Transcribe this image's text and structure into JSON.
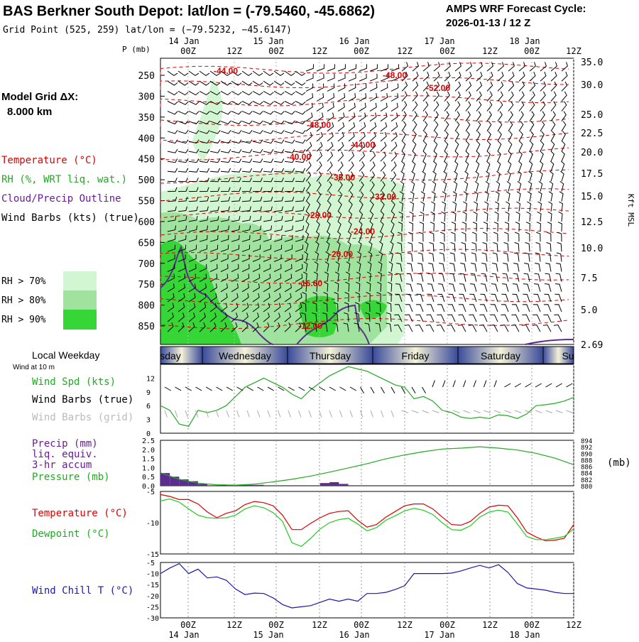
{
  "header": {
    "title": "BAS Berkner South Depot:  lat/lon = (-79.5460, -45.6862)",
    "grid_point": "Grid Point (525, 259) lat/lon = (−79.5232, −45.6147)",
    "forecast_cycle_label": "AMPS WRF Forecast Cycle:",
    "forecast_cycle_value": "2026-01-13 / 12  Z",
    "model_grid_label": "Model Grid ΔX:",
    "model_grid_value": "8.000 km"
  },
  "time_axis": {
    "dates": [
      "14 Jan",
      "15 Jan",
      "16 Jan",
      "17 Jan",
      "18 Jan"
    ],
    "hours": [
      "00Z",
      "12Z",
      "00Z",
      "12Z",
      "00Z",
      "12Z",
      "00Z",
      "12Z",
      "00Z",
      "12Z"
    ],
    "p_label": "P (mb)"
  },
  "legend": {
    "temperature": "Temperature (°C)",
    "rh": "RH (%, WRT liq. wat.)",
    "cloud": "Cloud/Precip Outline",
    "wind": "Wind Barbs (kts) (true)",
    "rh70": "RH > 70%",
    "rh80": "RH > 80%",
    "rh90": "RH > 90%",
    "colors": {
      "temperature": "#e00000",
      "rh": "#22aa22",
      "cloud": "#6a1b9a",
      "wind": "#000000",
      "rh70": "#d2f6d2",
      "rh80": "#9fe39f",
      "rh90": "#37d637"
    }
  },
  "weekday_strip": {
    "label": "Local Weekday",
    "sub": "Wind at 10 m",
    "days": [
      "sday",
      "Wednesday",
      "Thursday",
      "Friday",
      "Saturday",
      "Su"
    ]
  },
  "panel_labels": {
    "wind_spd": "Wind Spd (kts)",
    "wind_barbs_true": "Wind Barbs (true)",
    "wind_barbs_grid": "Wind Barbs (grid)",
    "precip1": "Precip (mm)",
    "precip2": "liq. equiv.",
    "precip3": "3-hr accum",
    "pressure": "Pressure (mb)",
    "pressure_unit": "(mb)",
    "temperature": "Temperature (°C)",
    "dewpoint": "Dewpoint (°C)",
    "windchill": "Wind Chill T (°C)",
    "kft": "Kft MSL"
  },
  "chart_data": [
    {
      "type": "heatmap",
      "name": "cross-section",
      "x_hours": [
        0,
        132
      ],
      "pressure_ticks": [
        250,
        300,
        350,
        400,
        450,
        500,
        550,
        600,
        650,
        700,
        750,
        800,
        850
      ],
      "height_ticks": [
        "35.0",
        "30.0",
        "25.0",
        "22.5",
        "20.0",
        "17.5",
        "15.0",
        "12.5",
        "10.0",
        "7.5",
        "5.0",
        "2.69"
      ],
      "temperature_labels": [
        "-44.00",
        "-48.00",
        "-52.00",
        "-48.00",
        "-44.00",
        "-40.00",
        "-36.00",
        "-32.00",
        "-28.00",
        "-24.00",
        "-20.00",
        "-16.00",
        "-12.00"
      ]
    },
    {
      "type": "line",
      "name": "wind-speed",
      "ylabel": "Wind Spd (kts)",
      "ylim": [
        0,
        15
      ],
      "yticks": [
        0,
        3,
        6,
        9,
        12
      ],
      "x": [
        0,
        3,
        6,
        9,
        12,
        15,
        18,
        21,
        24,
        27,
        30,
        33,
        36,
        39,
        42,
        45,
        48,
        51,
        54,
        57,
        60,
        63,
        66,
        69,
        72,
        75,
        78,
        81,
        84,
        87,
        90,
        93,
        96,
        99,
        102,
        105,
        108,
        111,
        114,
        117,
        120,
        123,
        126,
        129,
        132
      ],
      "values": [
        6,
        5,
        2,
        1.5,
        5,
        4.5,
        5,
        6,
        8,
        10,
        11,
        12,
        11,
        10,
        8.5,
        7.5,
        9.5,
        11,
        12.5,
        13.5,
        14.5,
        14,
        13.5,
        12.5,
        11.5,
        10.5,
        10,
        7.5,
        8,
        7,
        5,
        4.5,
        3.5,
        3.2,
        3.5,
        3.2,
        4,
        3.8,
        3.2,
        4.2,
        6,
        6.2,
        6.5,
        7,
        7.8
      ]
    },
    {
      "type": "bar",
      "name": "precip",
      "ylabel": "Precip (mm)",
      "ylim": [
        0,
        2.5
      ],
      "yticks": [
        "0.0",
        "0.5",
        "1.0",
        "1.5",
        "2.0",
        "2.5"
      ],
      "x": [
        1.5,
        4.5,
        7.5,
        10.5,
        13.5,
        22.5,
        25.5,
        28.5,
        31.5,
        52.5,
        55.5,
        58.5
      ],
      "values": [
        0.7,
        0.5,
        0.35,
        0.25,
        0.1,
        0.05,
        0.05,
        0.05,
        0.05,
        0.15,
        0.2,
        0.1
      ]
    },
    {
      "type": "line",
      "name": "pressure",
      "ylabel": "Pressure (mb)",
      "ylim": [
        880,
        894
      ],
      "yticks": [
        "894",
        "892",
        "890",
        "888",
        "886",
        "884",
        "882",
        "880"
      ],
      "x": [
        0,
        6,
        12,
        18,
        24,
        30,
        36,
        42,
        48,
        54,
        60,
        66,
        72,
        78,
        84,
        90,
        96,
        102,
        108,
        114,
        120,
        126,
        132
      ],
      "values": [
        884,
        882,
        880.8,
        880.3,
        880.2,
        880.5,
        881.2,
        882,
        883,
        884.2,
        885.5,
        886.8,
        888.3,
        889.5,
        890.5,
        891.3,
        891.6,
        892,
        891.6,
        891,
        890,
        888.5,
        886.5
      ]
    },
    {
      "type": "line",
      "name": "temperature-dewpoint",
      "ylim": [
        -15,
        -5
      ],
      "yticks": [
        "-5",
        "-10",
        "-15"
      ],
      "x": [
        0,
        3,
        6,
        9,
        12,
        15,
        18,
        21,
        24,
        27,
        30,
        33,
        36,
        39,
        42,
        45,
        48,
        51,
        54,
        57,
        60,
        63,
        66,
        69,
        72,
        75,
        78,
        81,
        84,
        87,
        90,
        93,
        96,
        99,
        102,
        105,
        108,
        111,
        114,
        117,
        120,
        123,
        126,
        129,
        132
      ],
      "series": [
        {
          "name": "Temperature",
          "values": [
            -5.5,
            -5.8,
            -6.3,
            -6.3,
            -7,
            -8.3,
            -9.2,
            -8.5,
            -8.1,
            -7.1,
            -6.6,
            -6.8,
            -7.3,
            -8.8,
            -11.1,
            -11.1,
            -10.1,
            -9.2,
            -8.5,
            -8.2,
            -8.1,
            -9.6,
            -10.7,
            -10.3,
            -9.1,
            -8.2,
            -7.3,
            -7,
            -7,
            -7.8,
            -9.1,
            -10.3,
            -10.4,
            -9.8,
            -8.5,
            -7.5,
            -7.2,
            -7.3,
            -9.2,
            -11.5,
            -12.3,
            -12.9,
            -12.8,
            -12.5,
            -10.3
          ]
        },
        {
          "name": "Dewpoint",
          "values": [
            -6.5,
            -6.2,
            -6.7,
            -7.8,
            -8.8,
            -9.2,
            -9.3,
            -9.2,
            -8.8,
            -7.8,
            -7.3,
            -7.6,
            -8.4,
            -9.8,
            -13.2,
            -13.8,
            -12.5,
            -11,
            -10,
            -9.5,
            -9.3,
            -10.2,
            -11.3,
            -10.8,
            -9.6,
            -8.9,
            -8.1,
            -7.7,
            -8,
            -8.7,
            -10,
            -11.1,
            -11.2,
            -10.5,
            -9.1,
            -8.3,
            -8,
            -8.3,
            -10.2,
            -12.2,
            -12.7,
            -12.7,
            -12.5,
            -12.2,
            -11
          ]
        }
      ]
    },
    {
      "type": "line",
      "name": "wind-chill",
      "ylabel": "Wind Chill T (°C)",
      "ylim": [
        -30,
        -5
      ],
      "yticks": [
        "-5",
        "-10",
        "-15",
        "-20",
        "-25",
        "-30"
      ],
      "x": [
        0,
        3,
        6,
        9,
        12,
        15,
        18,
        21,
        24,
        27,
        30,
        33,
        36,
        39,
        42,
        45,
        48,
        51,
        54,
        57,
        60,
        63,
        66,
        69,
        72,
        75,
        78,
        81,
        84,
        87,
        90,
        93,
        96,
        99,
        102,
        105,
        108,
        111,
        114,
        117,
        120,
        123,
        126,
        129,
        132
      ],
      "values": [
        -10,
        -7.5,
        -5.5,
        -10,
        -8,
        -12,
        -11.5,
        -13,
        -17,
        -19.5,
        -18.8,
        -19,
        -21,
        -24,
        -25.5,
        -25,
        -24.5,
        -23,
        -21.5,
        -22.5,
        -21.5,
        -22.5,
        -19,
        -19,
        -18.5,
        -17.2,
        -15.5,
        -10,
        -10,
        -10,
        -10,
        -9.8,
        -8.8,
        -7.5,
        -6.3,
        -7.5,
        -6,
        -9.5,
        -14.5,
        -16.5,
        -17,
        -17.5,
        -18.5,
        -19,
        -19
      ]
    }
  ]
}
